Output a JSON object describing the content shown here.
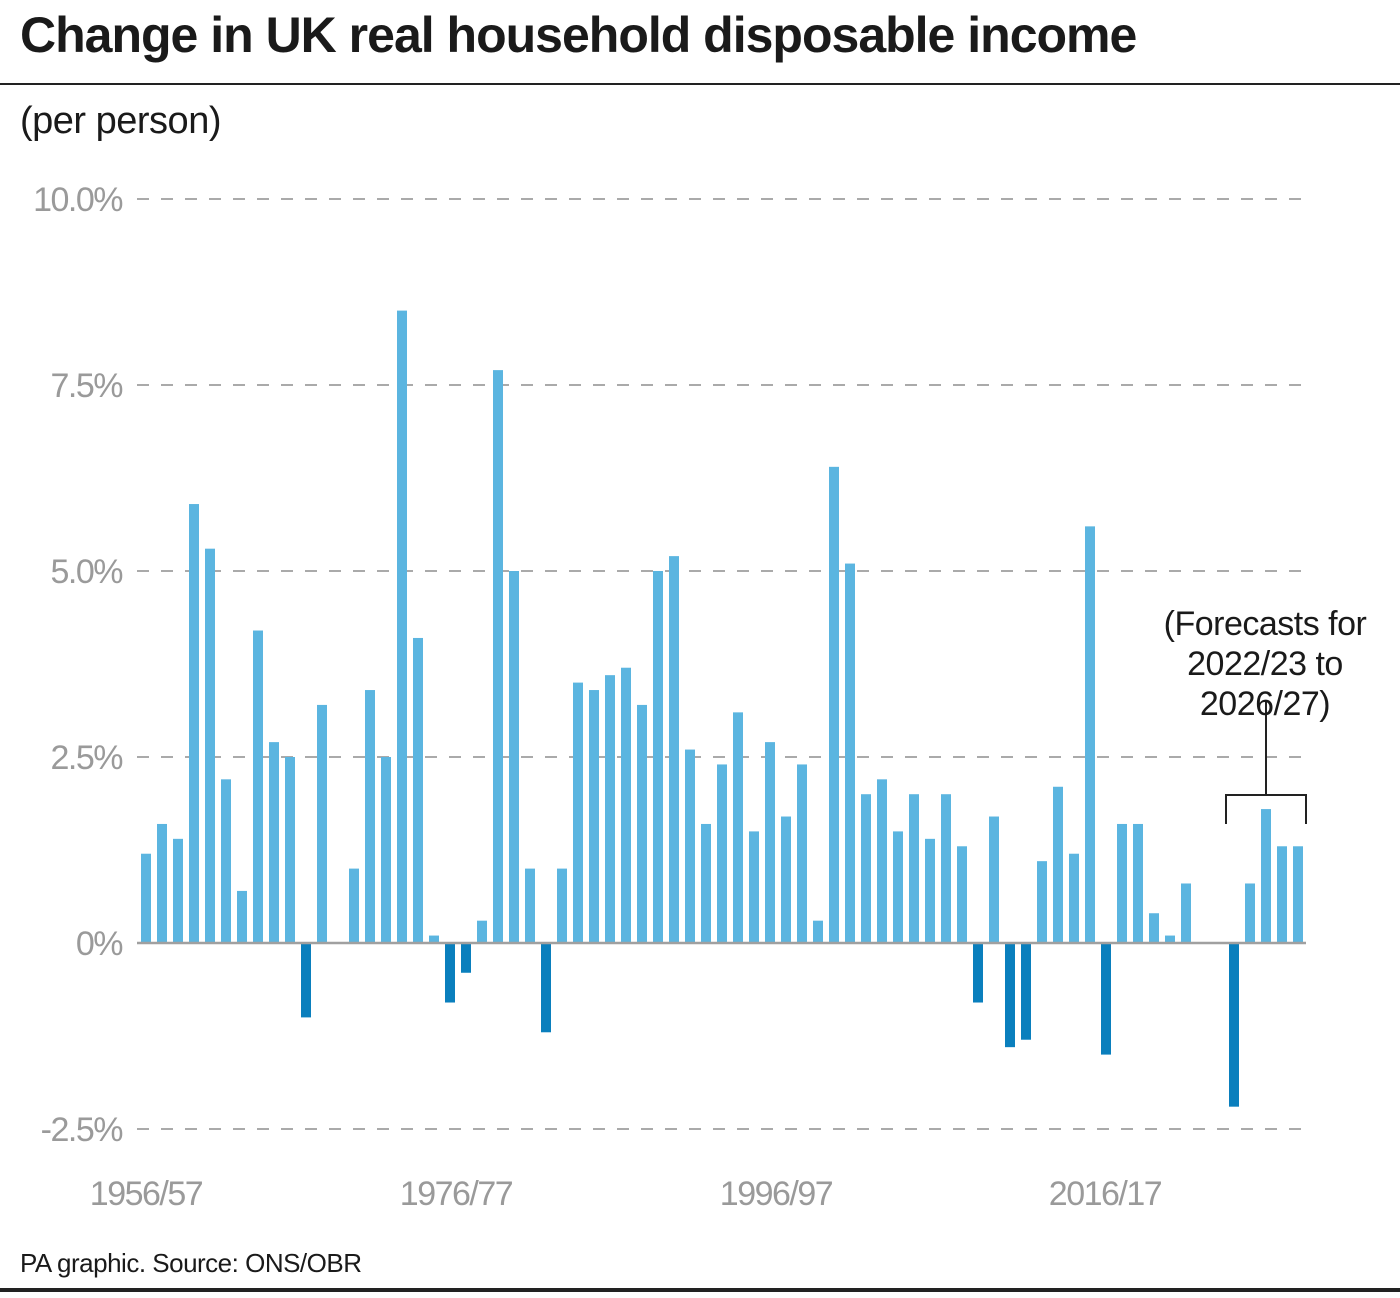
{
  "chart_data": {
    "type": "bar",
    "title": "Change in UK real household disposable income",
    "subtitle": "(per person)",
    "source": "PA graphic. Source: ONS/OBR",
    "annotation": "(Forecasts for 2022/23 to 2026/27)",
    "annotation_lines": [
      "(Forecasts for",
      "2022/23 to",
      "2026/27)"
    ],
    "ylim": [
      -2.5,
      10.0
    ],
    "y_ticks": [
      {
        "value": 10.0,
        "label": "10.0%"
      },
      {
        "value": 7.5,
        "label": "7.5%"
      },
      {
        "value": 5.0,
        "label": "5.0%"
      },
      {
        "value": 2.5,
        "label": "2.5%"
      },
      {
        "value": 0,
        "label": "0%"
      },
      {
        "value": -2.5,
        "label": "-2.5%"
      }
    ],
    "x_ticks": [
      {
        "index": 0,
        "label": "1956/57"
      },
      {
        "index": 20,
        "label": "1976/77"
      },
      {
        "index": 40,
        "label": "1996/97"
      },
      {
        "index": 60,
        "label": "2016/17"
      }
    ],
    "grid": true,
    "values": [
      1.2,
      1.6,
      1.4,
      5.9,
      5.3,
      2.2,
      0.7,
      4.2,
      2.7,
      2.5,
      -1.0,
      3.2,
      0,
      1.0,
      3.4,
      2.5,
      8.5,
      4.1,
      0.1,
      -0.8,
      -0.4,
      0.3,
      7.7,
      5.0,
      1.0,
      -1.2,
      1.0,
      3.5,
      3.4,
      3.6,
      3.7,
      3.2,
      5.0,
      5.2,
      2.6,
      1.6,
      2.4,
      3.1,
      1.5,
      2.7,
      1.7,
      2.4,
      0.3,
      6.4,
      5.1,
      2.0,
      2.2,
      1.5,
      2.0,
      1.4,
      2.0,
      1.3,
      -0.8,
      1.7,
      -1.4,
      -1.3,
      1.1,
      2.1,
      1.2,
      5.6,
      -1.5,
      1.6,
      1.6,
      0.4,
      0.1,
      0.8,
      0,
      0,
      -2.2,
      0.8,
      1.8,
      1.3,
      1.3
    ],
    "forecast_count": 5,
    "colors": {
      "positive": "#5bb5e0",
      "negative": "#0a7fbd",
      "grid": "#aaaaaa",
      "axis": "#a0a0a0"
    }
  }
}
